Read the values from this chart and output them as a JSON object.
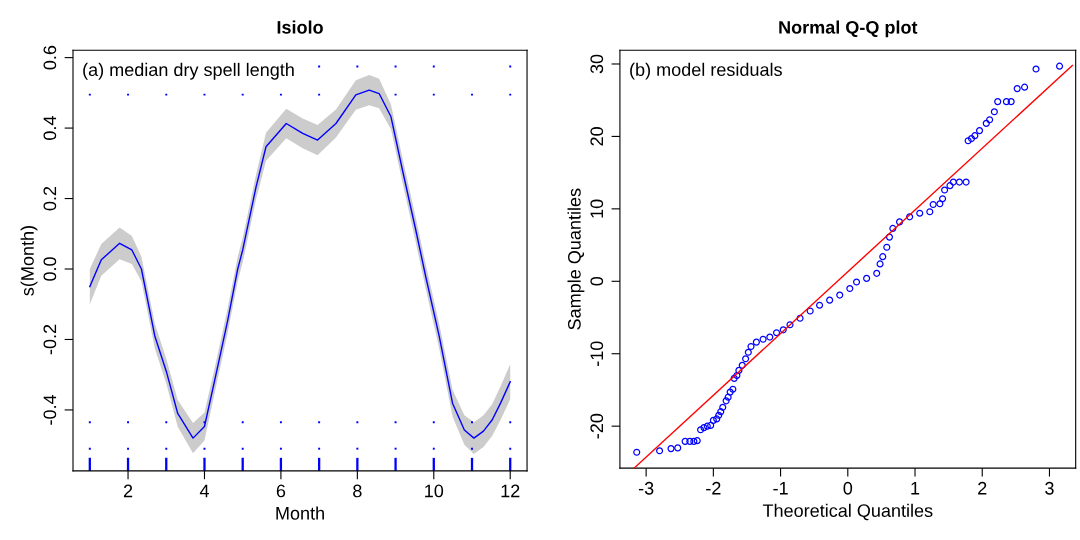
{
  "chart_data": [
    {
      "type": "line",
      "title": "Isiolo",
      "xlabel": "Month",
      "ylabel": "s(Month)",
      "annotations": [
        "(a) median dry spell length"
      ],
      "xlim": [
        0.56,
        12.44
      ],
      "ylim": [
        -0.573,
        0.621
      ],
      "xticks": [
        2,
        4,
        6,
        8,
        10,
        12
      ],
      "yticks": [
        -0.4,
        -0.2,
        {
          "value": 0,
          "label": "0.0"
        },
        0.2,
        0.4,
        0.6
      ],
      "grid": false,
      "legend": false,
      "series": [
        {
          "color": "#0000ff",
          "x": [
            1,
            1.3,
            1.78,
            2.1,
            2.35,
            2.7,
            3.0,
            3.3,
            3.7,
            4.0,
            4.3,
            4.6,
            4.87,
            5.0,
            5.35,
            5.61,
            6.14,
            6.57,
            6.96,
            7.44,
            7.96,
            8.31,
            8.57,
            8.88,
            9.18,
            9.53,
            9.79,
            10.14,
            10.49,
            10.8,
            11.05,
            11.3,
            11.53,
            11.75,
            12
          ],
          "values": [
            -0.05,
            0.026,
            0.073,
            0.054,
            0.0,
            -0.19,
            -0.29,
            -0.41,
            -0.48,
            -0.447,
            -0.3,
            -0.15,
            0.0,
            0.054,
            0.233,
            0.347,
            0.413,
            0.385,
            0.366,
            0.413,
            0.494,
            0.508,
            0.498,
            0.432,
            0.281,
            0.11,
            -0.022,
            -0.19,
            -0.381,
            -0.457,
            -0.48,
            -0.46,
            -0.428,
            -0.38,
            -0.32
          ],
          "lower": [
            -0.1,
            -0.019,
            0.028,
            0.014,
            -0.035,
            -0.225,
            -0.325,
            -0.448,
            -0.523,
            -0.487,
            -0.335,
            -0.185,
            -0.035,
            0.019,
            0.198,
            0.307,
            0.371,
            0.343,
            0.323,
            0.373,
            0.452,
            0.465,
            0.456,
            0.397,
            0.246,
            0.075,
            -0.057,
            -0.225,
            -0.419,
            -0.499,
            -0.525,
            -0.505,
            -0.473,
            -0.428,
            -0.37
          ],
          "upper": [
            0.0,
            0.071,
            0.118,
            0.094,
            0.035,
            -0.155,
            -0.255,
            -0.372,
            -0.437,
            -0.407,
            -0.265,
            -0.115,
            0.035,
            0.089,
            0.268,
            0.387,
            0.455,
            0.427,
            0.409,
            0.453,
            0.536,
            0.551,
            0.54,
            0.467,
            0.316,
            0.145,
            0.013,
            -0.155,
            -0.343,
            -0.415,
            -0.435,
            -0.415,
            -0.383,
            -0.332,
            -0.27
          ],
          "line_style": "solid",
          "marker": "none"
        },
        {
          "type": "scatter",
          "color": "#0000ff",
          "marker": "square",
          "x": [
            7,
            8,
            9,
            10,
            12,
            1,
            2,
            3,
            4,
            5,
            6,
            7,
            8,
            9,
            10,
            11,
            12,
            1,
            2,
            3,
            4,
            5,
            6,
            7,
            8,
            9,
            10,
            11,
            12,
            1,
            2,
            3,
            4,
            5,
            6,
            7,
            8,
            9,
            10,
            11,
            12
          ],
          "values": [
            0.575,
            0.575,
            0.575,
            0.575,
            0.575,
            0.495,
            0.495,
            0.495,
            0.495,
            0.495,
            0.495,
            0.495,
            null,
            0.495,
            0.495,
            0.495,
            0.495,
            -0.435,
            -0.435,
            -0.435,
            -0.435,
            -0.435,
            -0.435,
            -0.435,
            -0.435,
            -0.435,
            -0.435,
            -0.435,
            -0.435,
            -0.51,
            -0.51,
            -0.51,
            -0.51,
            -0.51,
            -0.51,
            -0.51,
            -0.51,
            -0.51,
            -0.51,
            -0.51,
            -0.51
          ]
        },
        {
          "type": "bar",
          "color": "#0000ff",
          "x": [
            1,
            2,
            3,
            4,
            5,
            6,
            7,
            8,
            9,
            10,
            11,
            12
          ],
          "base": [
            -0.573,
            -0.573,
            -0.573,
            -0.573,
            -0.573,
            -0.573,
            -0.573,
            -0.573,
            -0.573,
            -0.573,
            -0.573,
            -0.573
          ],
          "values": [
            0.037,
            0.037,
            0.037,
            0.037,
            0.037,
            0.037,
            0.037,
            0.037,
            0.037,
            0.037,
            0.037,
            0.037
          ]
        }
      ]
    },
    {
      "type": "scatter",
      "title": "Normal Q-Q plot",
      "xlabel": "Theoretical Quantiles",
      "ylabel": "Sample Quantiles",
      "annotations": [
        "(b) model residuals"
      ],
      "xlim": [
        -3.39,
        3.39
      ],
      "ylim": [
        -25.8,
        31.9
      ],
      "xticks": [
        -3,
        -2,
        -1,
        0,
        1,
        2,
        3
      ],
      "yticks": [
        -20,
        -10,
        0,
        10,
        20,
        30
      ],
      "grid": false,
      "legend": false,
      "series": [
        {
          "color": "#0000ff",
          "marker": "circle",
          "x": [
            -3.14,
            -2.8,
            -2.63,
            -2.53,
            -2.42,
            -2.35,
            -2.29,
            -2.24,
            -2.19,
            -2.14,
            -2.09,
            -2.04,
            -2.0,
            -1.95,
            -1.92,
            -1.89,
            -1.86,
            -1.81,
            -1.78,
            -1.75,
            -1.71,
            -1.69,
            -1.65,
            -1.62,
            -1.57,
            -1.52,
            -1.48,
            -1.44,
            -1.36,
            -1.26,
            -1.16,
            -1.06,
            -0.96,
            -0.86,
            -0.71,
            -0.56,
            -0.42,
            -0.27,
            -0.12,
            0.03,
            0.13,
            0.28,
            0.43,
            0.48,
            0.52,
            0.58,
            0.62,
            0.67,
            0.77,
            0.92,
            1.07,
            1.22,
            1.27,
            1.37,
            1.41,
            1.44,
            1.52,
            1.57,
            1.66,
            1.76,
            1.79,
            1.84,
            1.89,
            1.96,
            2.06,
            2.11,
            2.18,
            2.23,
            2.36,
            2.43,
            2.52,
            2.63,
            2.8,
            3.15
          ],
          "values": [
            -23.6,
            -23.4,
            -23.1,
            -23.0,
            -22.1,
            -22.1,
            -22.1,
            -22.0,
            -20.5,
            -20.2,
            -20.0,
            -19.9,
            -19.2,
            -19.0,
            -18.5,
            -18.0,
            -17.4,
            -16.5,
            -16.0,
            -15.3,
            -14.9,
            -13.4,
            -13.0,
            -12.3,
            -11.6,
            -10.7,
            -9.8,
            -9.0,
            -8.4,
            -8.0,
            -7.7,
            -7.1,
            -6.7,
            -6.0,
            -5.1,
            -4.1,
            -3.3,
            -2.6,
            -1.9,
            -1.0,
            -0.1,
            0.4,
            1.1,
            2.4,
            3.4,
            4.7,
            6.1,
            7.3,
            8.2,
            8.9,
            9.4,
            9.6,
            10.6,
            10.7,
            11.4,
            12.6,
            13.2,
            13.7,
            13.7,
            13.7,
            19.4,
            19.7,
            20.1,
            20.8,
            21.8,
            22.3,
            23.4,
            24.8,
            24.8,
            24.8,
            26.6,
            26.8,
            29.3,
            29.7
          ]
        },
        {
          "type": "line",
          "color": "#ff0000",
          "x": [
            -3.18,
            3.34
          ],
          "values": [
            -25.8,
            29.8
          ],
          "line_style": "solid",
          "marker": "none"
        }
      ]
    }
  ]
}
